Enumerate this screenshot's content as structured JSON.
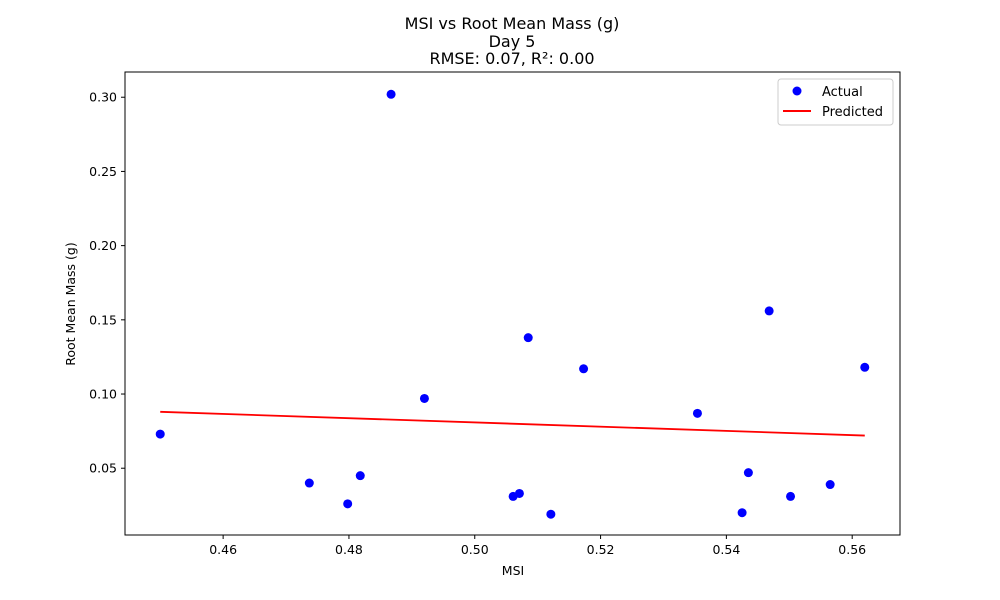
{
  "chart_data": {
    "type": "scatter",
    "title_lines": [
      "MSI vs Root Mean Mass (g)",
      "Day 5",
      "RMSE: 0.07, R²: 0.00"
    ],
    "xlabel": "MSI",
    "ylabel": "Root Mean Mass (g)",
    "xlim": [
      0.4444,
      0.5676
    ],
    "ylim": [
      0.005,
      0.317
    ],
    "xticks": [
      0.46,
      0.48,
      0.5,
      0.52,
      0.54,
      0.56
    ],
    "xtick_labels": [
      "0.46",
      "0.48",
      "0.50",
      "0.52",
      "0.54",
      "0.56"
    ],
    "yticks": [
      0.05,
      0.1,
      0.15,
      0.2,
      0.25,
      0.3
    ],
    "ytick_labels": [
      "0.05",
      "0.10",
      "0.15",
      "0.20",
      "0.25",
      "0.30"
    ],
    "grid": false,
    "legend_position": "top-right",
    "series": [
      {
        "name": "Actual",
        "kind": "scatter",
        "color": "#0000ff",
        "points": [
          {
            "x": 0.45,
            "y": 0.073
          },
          {
            "x": 0.4737,
            "y": 0.04
          },
          {
            "x": 0.4798,
            "y": 0.026
          },
          {
            "x": 0.4818,
            "y": 0.045
          },
          {
            "x": 0.4867,
            "y": 0.302
          },
          {
            "x": 0.492,
            "y": 0.097
          },
          {
            "x": 0.5061,
            "y": 0.031
          },
          {
            "x": 0.5071,
            "y": 0.033
          },
          {
            "x": 0.5085,
            "y": 0.138
          },
          {
            "x": 0.5121,
            "y": 0.019
          },
          {
            "x": 0.5173,
            "y": 0.117
          },
          {
            "x": 0.5354,
            "y": 0.087
          },
          {
            "x": 0.5425,
            "y": 0.02
          },
          {
            "x": 0.5435,
            "y": 0.047
          },
          {
            "x": 0.5468,
            "y": 0.156
          },
          {
            "x": 0.5502,
            "y": 0.031
          },
          {
            "x": 0.5565,
            "y": 0.039
          },
          {
            "x": 0.562,
            "y": 0.118
          }
        ]
      },
      {
        "name": "Predicted",
        "kind": "line",
        "color": "#ff0000",
        "points": [
          {
            "x": 0.45,
            "y": 0.088
          },
          {
            "x": 0.562,
            "y": 0.072
          }
        ]
      }
    ]
  }
}
